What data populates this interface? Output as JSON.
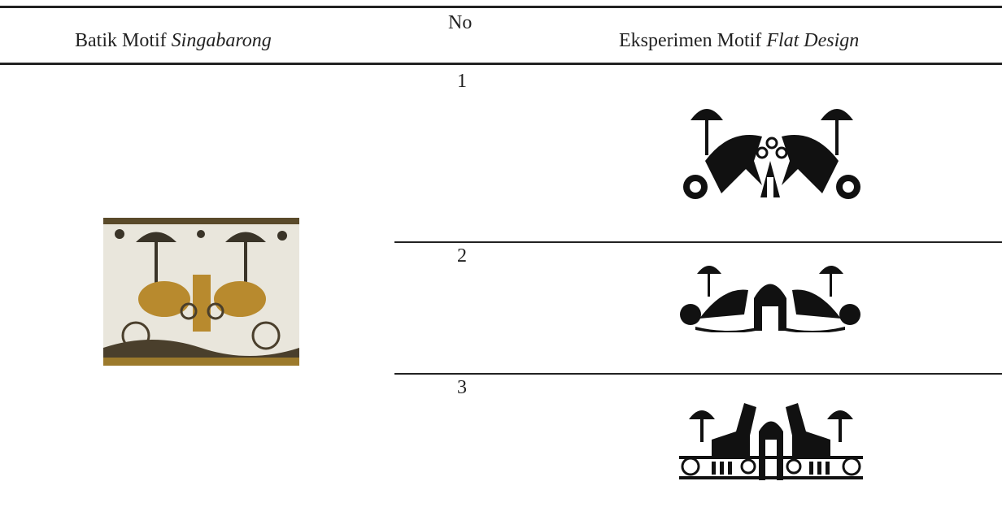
{
  "header": {
    "col1": {
      "text": "Batik Motif",
      "emphasis": "Singabarong"
    },
    "col2": "No",
    "col3": {
      "text": "Eksperimen Motif",
      "emphasis": "Flat Design"
    }
  },
  "rows": [
    {
      "no": "1"
    },
    {
      "no": "2"
    },
    {
      "no": "3"
    }
  ]
}
